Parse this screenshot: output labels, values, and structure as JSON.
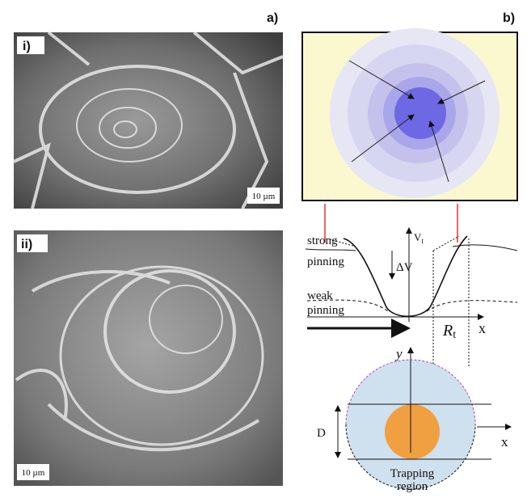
{
  "panel_a": {
    "label": "a)",
    "images": [
      {
        "label": "i)",
        "scale_bar": "10 µm"
      },
      {
        "label": "ii)",
        "scale_bar": "10 µm"
      }
    ]
  },
  "panel_b": {
    "label": "b)",
    "potential_plot": {
      "y_axis": "V",
      "y_axis_sub": "t",
      "x_axis": "x",
      "strong_pinning": [
        "strong",
        "pinning"
      ],
      "weak_pinning": [
        "weak",
        "pinning"
      ],
      "delta_v": "ΔV",
      "radius": "R",
      "radius_sub": "t"
    },
    "trap_diagram": {
      "y_axis": "y",
      "x_axis": "x",
      "width": "D",
      "region": [
        "Trapping",
        "region"
      ]
    }
  }
}
